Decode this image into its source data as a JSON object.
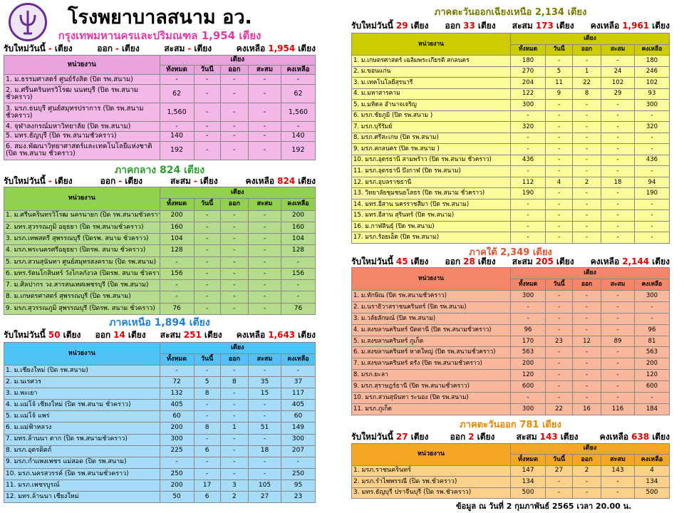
{
  "header": {
    "title": "โรงพยาบาลสนาม อว."
  },
  "sections": [
    {
      "title": "กรุงเทพมหานครและปริมณฑล 1,954 เตียง",
      "summary": [
        {
          "label": "รับใหม่วันนี้",
          "value": "-",
          "unit": "เตียง"
        },
        {
          "label": "ออก",
          "value": "-",
          "unit": "เตียง"
        },
        {
          "label": "สะสม",
          "value": "-",
          "unit": "เตียง"
        },
        {
          "label": "คงเหลือ",
          "value": "1,954",
          "unit": "เตียง"
        }
      ],
      "table_header": {
        "unit": "หน่วยงาน",
        "group": "เตียง",
        "columns": [
          "ทั้งหมด",
          "วันนี้",
          "ออก",
          "สะสม",
          "คงเหลือ"
        ]
      },
      "rows": [
        [
          "1. ม.ธรรมศาสตร์ ศูนย์รังสิต (ปิด รพ.สนาม)",
          "-",
          "-",
          "-",
          "-",
          "-"
        ],
        [
          "2. ม.ศรีนครินทรวิโรฒ นนทบุรี (ปิด รพ.สนามชั่วคราว)",
          "62",
          "-",
          "-",
          "-",
          "62"
        ],
        [
          "3. มรภ.ธนบุรี ศูนย์สมุทรปราการ (ปิด รพ.สนามชั่วคราว)",
          "1,560",
          "-",
          "-",
          "-",
          "1,560"
        ],
        [
          "4. จุฬาลงกรณ์มหาวิทยาลัย (ปิด รพ.สนาม)",
          "-",
          "-",
          "-",
          "-",
          "-"
        ],
        [
          "5. มทร.ธัญบุรี (ปิด รพ.สนามชั่วคราว)",
          "140",
          "-",
          "-",
          "-",
          "140"
        ],
        [
          "6. สมง.พัฒนาวิทยาศาสตร์และเทคโนโลยีแห่งชาติ (ปิด รพ.สนาม ชั่วคราว)",
          "192",
          "-",
          "-",
          "-",
          "192"
        ]
      ]
    },
    {
      "title": "ภาคกลาง 824 เตียง",
      "summary": [
        {
          "label": "รับใหม่วันนี้",
          "value": "-",
          "unit": "เตียง"
        },
        {
          "label": "ออก",
          "value": "-",
          "unit": "เตียง"
        },
        {
          "label": "สะสม",
          "value": "-",
          "unit": "เตียง"
        },
        {
          "label": "คงเหลือ",
          "value": "824",
          "unit": "เตียง"
        }
      ],
      "table_header": {
        "unit": "หน่วยงาน",
        "group": "เตียง",
        "columns": [
          "ทั้งหมด",
          "วันนี้",
          "ออก",
          "สะสม",
          "คงเหลือ"
        ]
      },
      "rows": [
        [
          "1. ม.ศรีนครินทรวิโรฒ นครนายก (ปิด รพ.สนามชั่วคราว)",
          "200",
          "-",
          "-",
          "-",
          "200"
        ],
        [
          "2. มทร.สุวรรณภูมิ อยุธยา (ปิด รพ.สนามชั่วคราว)",
          "160",
          "-",
          "-",
          "-",
          "160"
        ],
        [
          "3. มรภ.เทพสตรี สุพรรณบุรี (ปิดรพ. สนาม ชั่วคราว)",
          "104",
          "-",
          "-",
          "-",
          "104"
        ],
        [
          "4. มรภ.พระนครศรีอยุธยา (ปิดรพ. สนาม ชั่วคราว)",
          "128",
          "-",
          "-",
          "-",
          "128"
        ],
        [
          "5. มรภ.สวนสุนันทา ศูนย์สมุทรสงคราม (ปิด รพ.สนาม)",
          "-",
          "-",
          "-",
          "-",
          "-"
        ],
        [
          "6. มทร.รัตนโกสินทร์ วังไกลกังวล (ปิดรพ. สนาม ชั่วคราว)",
          "156",
          "-",
          "-",
          "-",
          "156"
        ],
        [
          "7. ม.ศิลปากร วง.สารสนเทศเพชรบุรี (ปิด รพ.สนาม)",
          "-",
          "-",
          "-",
          "-",
          "-"
        ],
        [
          "8. ม.เกษตรศาสตร์ สุพรรณบุรี (ปิด รพ.สนาม)",
          "-",
          "-",
          "-",
          "-",
          "-"
        ],
        [
          "9. มรภ.สุวรรณภูมิ สุพรรณบุรี (ปิดรพ. สนาม ชั่วคราว)",
          "76",
          "-",
          "-",
          "-",
          "76"
        ]
      ]
    },
    {
      "title": "ภาคเหนือ 1,894 เตียง",
      "summary": [
        {
          "label": "รับใหม่วันนี้",
          "value": "50",
          "unit": "เตียง"
        },
        {
          "label": "ออก",
          "value": "14",
          "unit": "เตียง"
        },
        {
          "label": "สะสม",
          "value": "251",
          "unit": "เตียง"
        },
        {
          "label": "คงเหลือ",
          "value": "1,643",
          "unit": "เตียง"
        }
      ],
      "table_header": {
        "unit": "หน่วยงาน",
        "group": "เตียง",
        "columns": [
          "ทั้งหมด",
          "วันนี้",
          "ออก",
          "สะสม",
          "คงเหลือ"
        ]
      },
      "rows": [
        [
          "1. ม.เชียงใหม่ (ปิด รพ.สนาม)",
          "-",
          "-",
          "-",
          "-",
          "-"
        ],
        [
          "2. ม.นเรศวร",
          "72",
          "5",
          "8",
          "35",
          "37"
        ],
        [
          "3. ม.พะเยา",
          "132",
          "8",
          "-",
          "15",
          "117"
        ],
        [
          "4. ม.แม่โจ้ เชียงใหม่ (ปิด รพ.สนาม ชั่วคราว)",
          "405",
          "-",
          "-",
          "-",
          "405"
        ],
        [
          "5. ม.แม่โจ้ แพร่",
          "60",
          "-",
          "-",
          "-",
          "60"
        ],
        [
          "6. ม.แม่ฟ้าหลวง",
          "200",
          "8",
          "1",
          "51",
          "149"
        ],
        [
          "7. มทร.ล้านนา ตาก (ปิด รพ.สนามชั่วคราว)",
          "300",
          "-",
          "-",
          "-",
          "300"
        ],
        [
          "8. มรภ.อุตรดิตถ์",
          "225",
          "6",
          "-",
          "18",
          "207"
        ],
        [
          "9. มรภ.กำแพงเพชร แม่สอด (ปิด รพ.สนาม)",
          "-",
          "-",
          "-",
          "-",
          "-"
        ],
        [
          "10. มรภ.นครสวรรค์ (ปิด รพ.สนามชั่วคราว)",
          "250",
          "-",
          "-",
          "-",
          "250"
        ],
        [
          "11. มรภ.เพชรบูรณ์",
          "200",
          "17",
          "3",
          "105",
          "95"
        ],
        [
          "12. มทร.ล้านนา เชียงใหม่",
          "50",
          "6",
          "2",
          "27",
          "23"
        ]
      ]
    },
    {
      "title": "ภาคตะวันออกเฉียงเหนือ 2,134 เตียง",
      "summary": [
        {
          "label": "รับใหม่วันนี้",
          "value": "29",
          "unit": "เตียง"
        },
        {
          "label": "ออก",
          "value": "33",
          "unit": "เตียง"
        },
        {
          "label": "สะสม",
          "value": "173",
          "unit": "เตียง"
        },
        {
          "label": "คงเหลือ",
          "value": "1,961",
          "unit": "เตียง"
        }
      ],
      "table_header": {
        "unit": "หน่วยงาน",
        "group": "เตียง",
        "columns": [
          "ทั้งหมด",
          "วันนี้",
          "ออก",
          "สะสม",
          "คงเหลือ"
        ]
      },
      "rows": [
        [
          "1. ม.เกษตรศาสตร์ เฉลิมพระเกียรติ สกลนคร",
          "180",
          "-",
          "-",
          "-",
          "180"
        ],
        [
          "2. ม.ขอนแก่น",
          "270",
          "5",
          "1",
          "24",
          "246"
        ],
        [
          "3. ม.เทคโนโลยีสุรนารี",
          "204",
          "11",
          "22",
          "102",
          "102"
        ],
        [
          "4. ม.มหาสารคาม",
          "122",
          "9",
          "8",
          "29",
          "93"
        ],
        [
          "5. ม.มหิดล อำนาจเจริญ",
          "300",
          "-",
          "-",
          "-",
          "300"
        ],
        [
          "6. มรภ.ชัยภูมิ (ปิด รพ.สนาม )",
          "-",
          "-",
          "-",
          "-",
          "-"
        ],
        [
          "7. มรภ.บุรีรัมย์",
          "320",
          "-",
          "-",
          "-",
          "320"
        ],
        [
          "8. มรภ.ศรีสะเกษ (ปิด รพ.สนาม)",
          "-",
          "-",
          "-",
          "-",
          "-"
        ],
        [
          "9. มรภ.สกลนคร (ปิด รพ.สนาม )",
          "-",
          "-",
          "-",
          "-",
          "-"
        ],
        [
          "10. มรภ.อุดรธานี สามพร้าว (ปิด รพ.สนาม ชั่วคราว)",
          "436",
          "-",
          "-",
          "-",
          "436"
        ],
        [
          "11. มรภ.อุดรธานี บึงกาฬ (ปิด รพ.สนาม)",
          "-",
          "-",
          "-",
          "-",
          "-"
        ],
        [
          "12. มรภ.อุบลราชธานี",
          "112",
          "4",
          "2",
          "18",
          "94"
        ],
        [
          "13. วิทยาลัยชุมชนยโสธร (ปิด รพ.สนาม ชั่วคราว)",
          "190",
          "-",
          "-",
          "-",
          "190"
        ],
        [
          "14. มทร.อีสาน นครราชสีมา (ปิด รพ.สนาม)",
          "-",
          "-",
          "-",
          "-",
          "-"
        ],
        [
          "15. มทร.อีสาน สุรินทร์ (ปิด รพ.สนาม)",
          "-",
          "-",
          "-",
          "-",
          "-"
        ],
        [
          "16. ม.กาฬสินธุ์ (ปิด รพ.สนาม)",
          "-",
          "-",
          "-",
          "-",
          "-"
        ],
        [
          "17. มรภ.ร้อยเอ็ด (ปิด รพ.สนาม)",
          "-",
          "-",
          "-",
          "-",
          "-"
        ]
      ]
    },
    {
      "title": "ภาคใต้ 2,349 เตียง",
      "summary": [
        {
          "label": "รับใหม่วันนี้",
          "value": "45",
          "unit": "เตียง"
        },
        {
          "label": "ออก",
          "value": "28",
          "unit": "เตียง"
        },
        {
          "label": "สะสม",
          "value": "205",
          "unit": "เตียง"
        },
        {
          "label": "คงเหลือ",
          "value": "2,144",
          "unit": "เตียง"
        }
      ],
      "table_header": {
        "unit": "หน่วยงาน",
        "group": "เตียง",
        "columns": [
          "ทั้งหมด",
          "วันนี้",
          "ออก",
          "สะสม",
          "คงเหลือ"
        ]
      },
      "rows": [
        [
          "1. ม.ทักษิณ (ปิด รพ.สนามชั่วคราว)",
          "300",
          "-",
          "-",
          "-",
          "300"
        ],
        [
          "2. ม.นราธิวาสราชนครินทร์ (ปิด รพ.สนาม)",
          "-",
          "-",
          "-",
          "-",
          "-"
        ],
        [
          "3. ม.วลัยลักษณ์ (ปิด รพ.สนาม)",
          "-",
          "-",
          "-",
          "-",
          "-"
        ],
        [
          "4. ม.สงขลานครินทร์ ปัตตานี (ปิด รพ.สนามชั่วคราว)",
          "96",
          "-",
          "-",
          "-",
          "96"
        ],
        [
          "5. ม.สงขลานครินทร์ ภูเก็ต",
          "170",
          "23",
          "12",
          "89",
          "81"
        ],
        [
          "6. ม.สงขลานครินทร์ หาดใหญ่ (ปิด รพ.สนามชั่วคราว)",
          "563",
          "-",
          "-",
          "-",
          "563"
        ],
        [
          "7. ม.สงขลานครินทร์ ตรัง (ปิด รพ.สนามชั่วคราว)",
          "200",
          "-",
          "-",
          "-",
          "200"
        ],
        [
          "8. มรภ.ยะลา",
          "120",
          "-",
          "-",
          "-",
          "120"
        ],
        [
          "9. มรภ.สุราษฎร์ธานี (ปิด รพ.สนามชั่วคราว)",
          "600",
          "-",
          "-",
          "-",
          "600"
        ],
        [
          "10. มรภ.สวนสุนันทา ระนอง (ปิด รพ.สนาม)",
          "-",
          "-",
          "-",
          "-",
          "-"
        ],
        [
          "11. มรภ.ภูเก็ต",
          "300",
          "22",
          "16",
          "116",
          "184"
        ]
      ]
    },
    {
      "title": "ภาคตะวันออก 781 เตียง",
      "summary": [
        {
          "label": "รับใหม่วันนี้",
          "value": "27",
          "unit": "เตียง"
        },
        {
          "label": "ออก",
          "value": "2",
          "unit": "เตียง"
        },
        {
          "label": "สะสม",
          "value": "143",
          "unit": "เตียง"
        },
        {
          "label": "คงเหลือ",
          "value": "638",
          "unit": "เตียง"
        }
      ],
      "table_header": {
        "unit": "หน่วยงาน",
        "group": "เตียง",
        "columns": [
          "ทั้งหมด",
          "วันนี้",
          "ออก",
          "สะสม",
          "คงเหลือ"
        ]
      },
      "rows": [
        [
          "1. มรภ.ราชนครินทร์",
          "147",
          "27",
          "2",
          "143",
          "4"
        ],
        [
          "2. มรภ.รำไพพรรณี (ปิด รพ.ชั่วคราว)",
          "134",
          "-",
          "-",
          "-",
          "134"
        ],
        [
          "3. มทร.ธัญบุรี ปราจีนบุรี (ปิด รพ.ชั่วคราว)",
          "500",
          "-",
          "-",
          "-",
          "500"
        ]
      ]
    }
  ],
  "footer": {
    "note": "ข้อมูล ณ วันที่ 2 กุมภาพันธ์ 2565 เวลา 20.00 น."
  }
}
